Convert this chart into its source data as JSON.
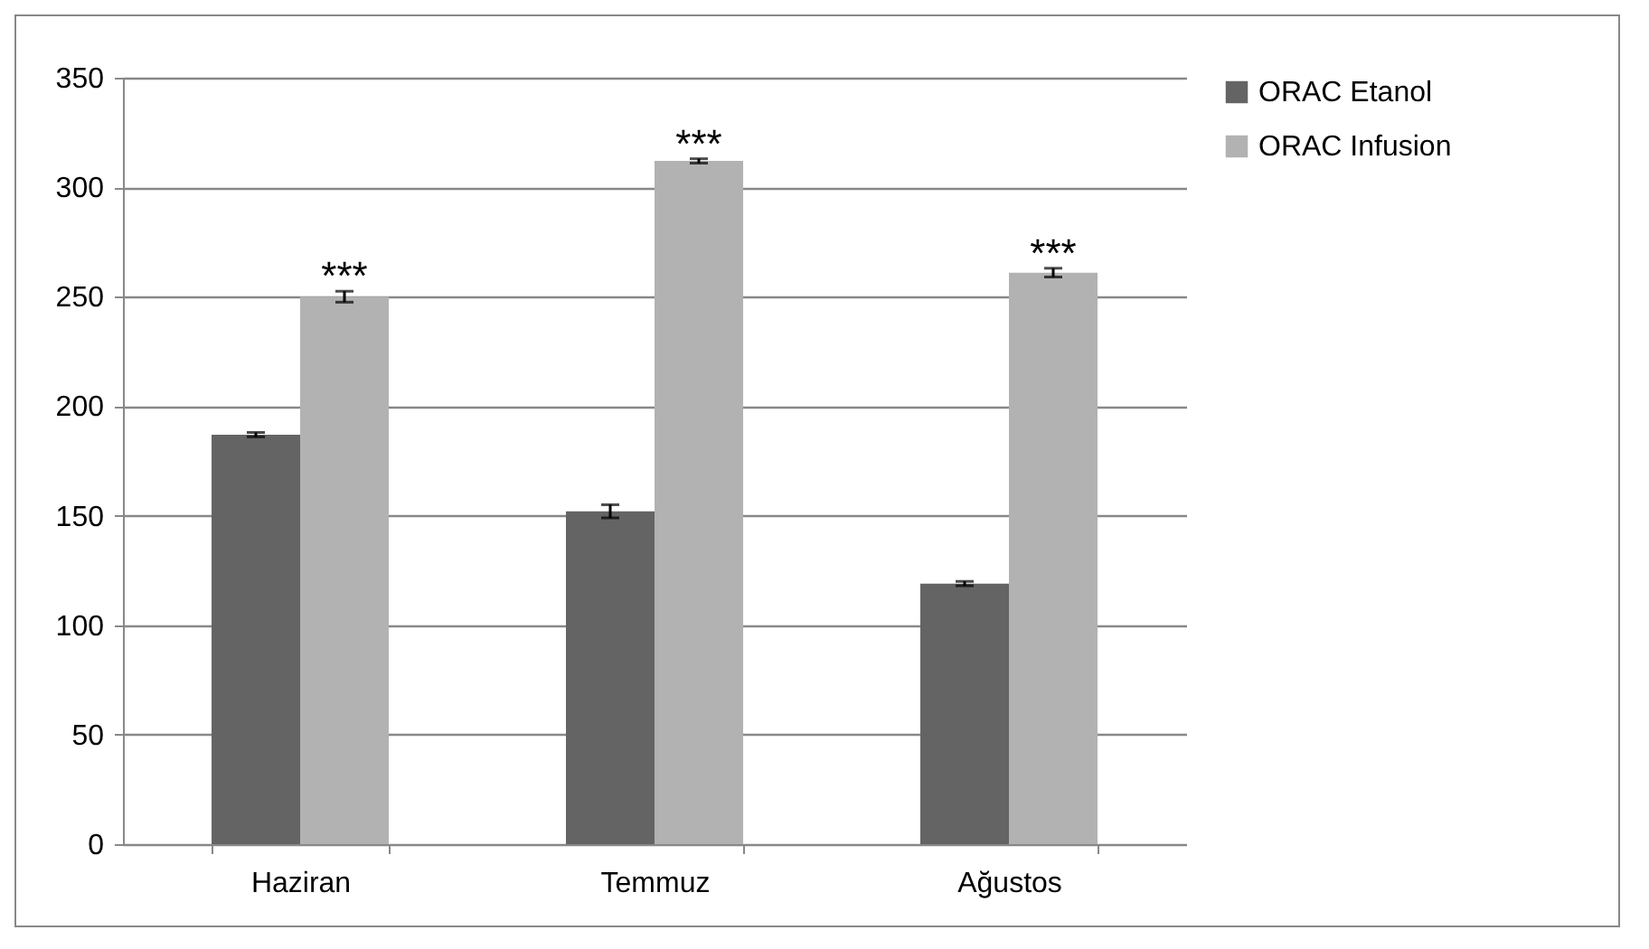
{
  "chart_data": {
    "type": "bar",
    "categories": [
      "Haziran",
      "Temmuz",
      "Ağustos"
    ],
    "series": [
      {
        "name": "ORAC Etanol",
        "color": "#646464",
        "values": [
          187,
          152,
          119
        ],
        "errors": [
          1,
          3,
          1
        ]
      },
      {
        "name": "ORAC Infusion",
        "color": "#b2b2b2",
        "values": [
          250,
          312,
          261
        ],
        "errors": [
          2.5,
          1,
          2
        ]
      }
    ],
    "ylim": [
      0,
      350
    ],
    "yticks": [
      0,
      50,
      100,
      150,
      200,
      250,
      300,
      350
    ],
    "grid": "y",
    "legend": "right",
    "annotations": [
      {
        "text": "***",
        "x": "Haziran",
        "y": 250
      },
      {
        "text": "***",
        "x": "Temmuz",
        "y": 312
      },
      {
        "text": "***",
        "x": "Ağustos",
        "y": 261
      }
    ]
  }
}
